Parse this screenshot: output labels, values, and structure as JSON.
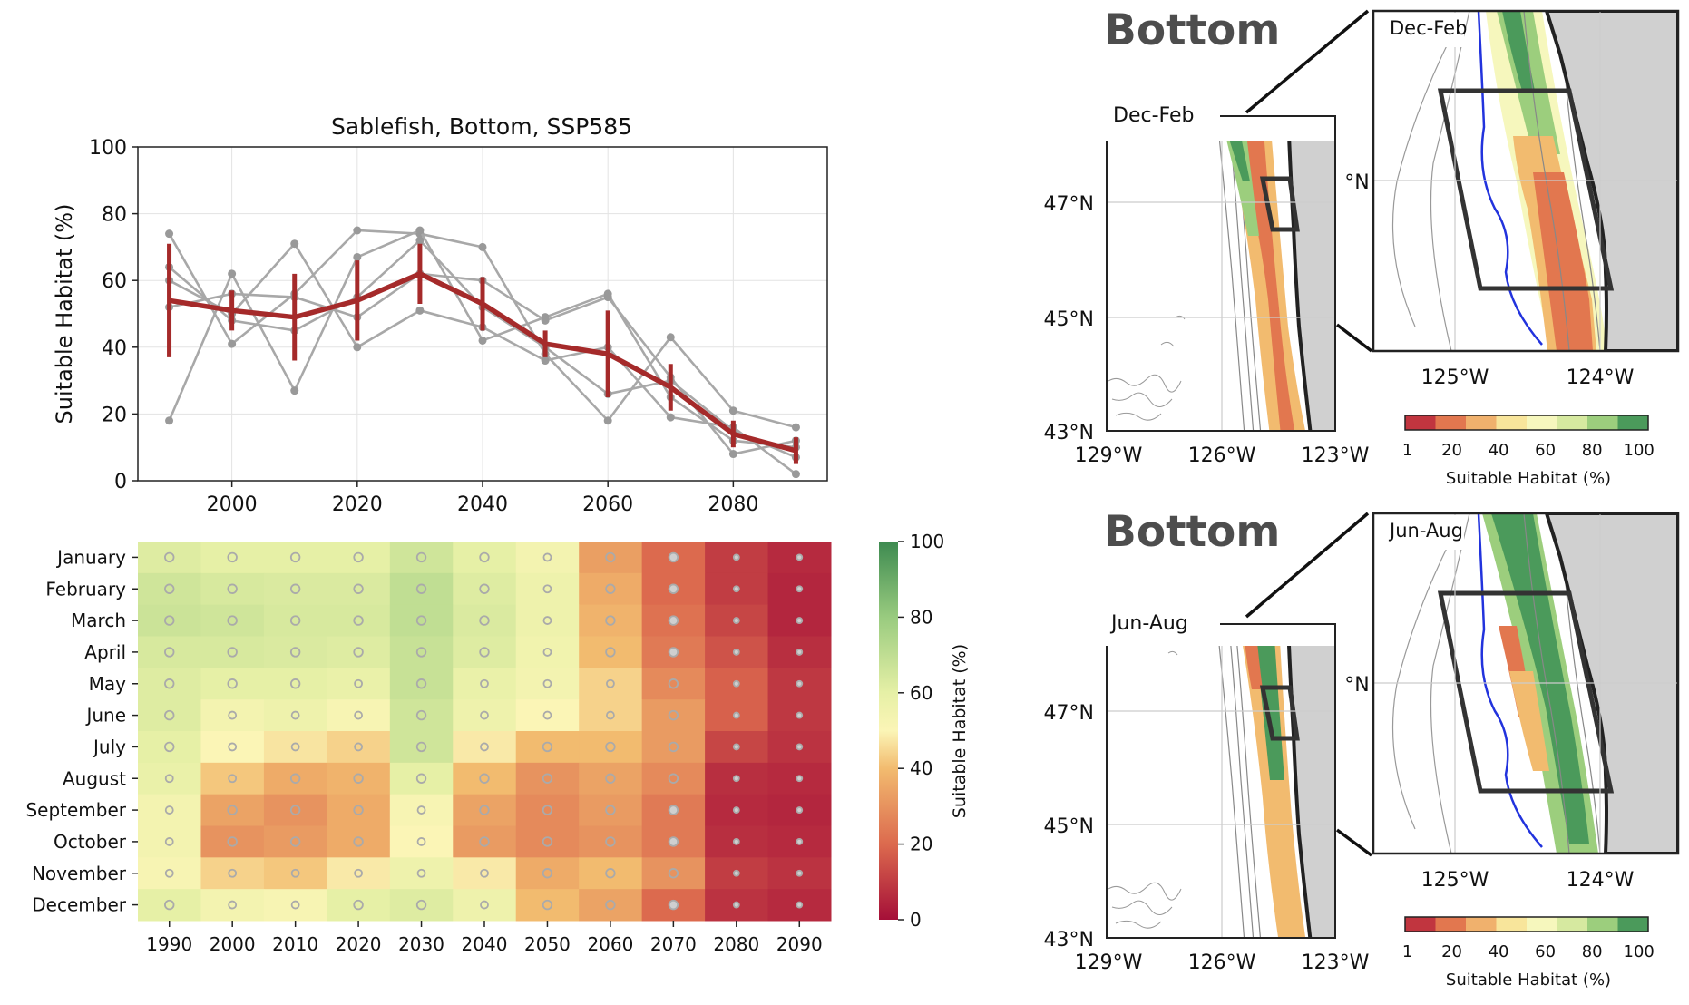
{
  "chart_data": [
    {
      "type": "line",
      "title": "Sablefish, Bottom, SSP585",
      "xlabel": "",
      "ylabel": "Suitable Habitat (%)",
      "xlim": [
        1985,
        2095
      ],
      "ylim": [
        0,
        100
      ],
      "xticks": [
        "2000",
        "2020",
        "2040",
        "2060",
        "2080"
      ],
      "yticks": [
        "0",
        "20",
        "40",
        "60",
        "80",
        "100"
      ],
      "grid": true,
      "x": [
        1990,
        2000,
        2010,
        2020,
        2030,
        2040,
        2050,
        2060,
        2070,
        2080,
        2090
      ],
      "series": [
        {
          "values": [
            74,
            41,
            56,
            75,
            74,
            70,
            38,
            18,
            43,
            21,
            16
          ]
        },
        {
          "values": [
            18,
            62,
            27,
            67,
            75,
            42,
            49,
            56,
            25,
            12,
            10
          ]
        },
        {
          "values": [
            60,
            50,
            71,
            40,
            51,
            46,
            36,
            40,
            19,
            16,
            2
          ]
        },
        {
          "values": [
            52,
            56,
            55,
            49,
            62,
            60,
            48,
            55,
            31,
            8,
            12
          ]
        },
        {
          "values": [
            64,
            48,
            45,
            55,
            72,
            52,
            40,
            26,
            30,
            15,
            7
          ]
        },
        {
          "values": [
            54,
            51,
            49,
            54,
            62,
            53,
            41,
            38,
            28,
            14,
            9
          ],
          "error": [
            17,
            6,
            13,
            12,
            9,
            8,
            4,
            13,
            7,
            4,
            4
          ]
        }
      ]
    },
    {
      "type": "heatmap",
      "rows": [
        "January",
        "February",
        "March",
        "April",
        "May",
        "June",
        "July",
        "August",
        "September",
        "October",
        "November",
        "December"
      ],
      "columns": [
        "1990",
        "2000",
        "2010",
        "2020",
        "2030",
        "2040",
        "2050",
        "2060",
        "2070",
        "2080",
        "2090"
      ],
      "values": [
        [
          62,
          60,
          60,
          60,
          66,
          60,
          54,
          33,
          20,
          10,
          6
        ],
        [
          66,
          64,
          63,
          63,
          70,
          62,
          56,
          36,
          20,
          10,
          5
        ],
        [
          67,
          66,
          64,
          64,
          70,
          63,
          56,
          38,
          22,
          12,
          5
        ],
        [
          64,
          64,
          63,
          62,
          68,
          62,
          55,
          40,
          24,
          15,
          7
        ],
        [
          62,
          60,
          60,
          58,
          68,
          58,
          54,
          44,
          28,
          18,
          9
        ],
        [
          62,
          54,
          56,
          52,
          66,
          56,
          50,
          44,
          32,
          18,
          9
        ],
        [
          60,
          50,
          47,
          44,
          66,
          48,
          40,
          40,
          32,
          12,
          8
        ],
        [
          58,
          42,
          36,
          38,
          60,
          40,
          30,
          34,
          28,
          7,
          6
        ],
        [
          54,
          34,
          30,
          36,
          52,
          34,
          28,
          32,
          24,
          6,
          5
        ],
        [
          54,
          30,
          32,
          36,
          50,
          32,
          28,
          30,
          24,
          7,
          6
        ],
        [
          52,
          44,
          42,
          48,
          56,
          48,
          36,
          40,
          30,
          10,
          8
        ],
        [
          60,
          54,
          52,
          60,
          62,
          56,
          40,
          34,
          20,
          8,
          6
        ]
      ],
      "colorbar": {
        "label": "Suitable Habitat (%)",
        "range": [
          0,
          100
        ],
        "ticks": [
          "0",
          "20",
          "40",
          "60",
          "80",
          "100"
        ]
      },
      "markers": "open-circle-per-cell"
    }
  ],
  "maps": [
    {
      "heading": "Bottom",
      "season_label": "Dec-Feb",
      "inset_label": "Dec-Feb",
      "lat_labels": [
        "47°N",
        "45°N",
        "43°N"
      ],
      "lon_labels": [
        "129°W",
        "126°W",
        "123°W"
      ],
      "inset_lat_label": "°N",
      "inset_lon_labels": [
        "125°W",
        "124°W"
      ],
      "colorbar_ticks": [
        "1",
        "20",
        "40",
        "60",
        "80",
        "100"
      ],
      "colorbar_label": "Suitable Habitat (%)"
    },
    {
      "heading": "Bottom",
      "season_label": "Jun-Aug",
      "inset_label": "Jun-Aug",
      "lat_labels": [
        "47°N",
        "45°N",
        "43°N"
      ],
      "lon_labels": [
        "129°W",
        "126°W",
        "123°W"
      ],
      "inset_lat_label": "°N",
      "inset_lon_labels": [
        "125°W",
        "124°W"
      ],
      "colorbar_ticks": [
        "1",
        "20",
        "40",
        "60",
        "80",
        "100"
      ],
      "colorbar_label": "Suitable Habitat (%)"
    }
  ],
  "colors": {
    "mean_line": "#a52a2a",
    "member_lines": "#a8a8a8",
    "land": "#d0d0d0",
    "ramp": [
      "#c1353f",
      "#e2774f",
      "#f0b16d",
      "#f8e59b",
      "#f6f7bd",
      "#d6e9a0",
      "#9cce7d",
      "#4b9a5b"
    ]
  }
}
